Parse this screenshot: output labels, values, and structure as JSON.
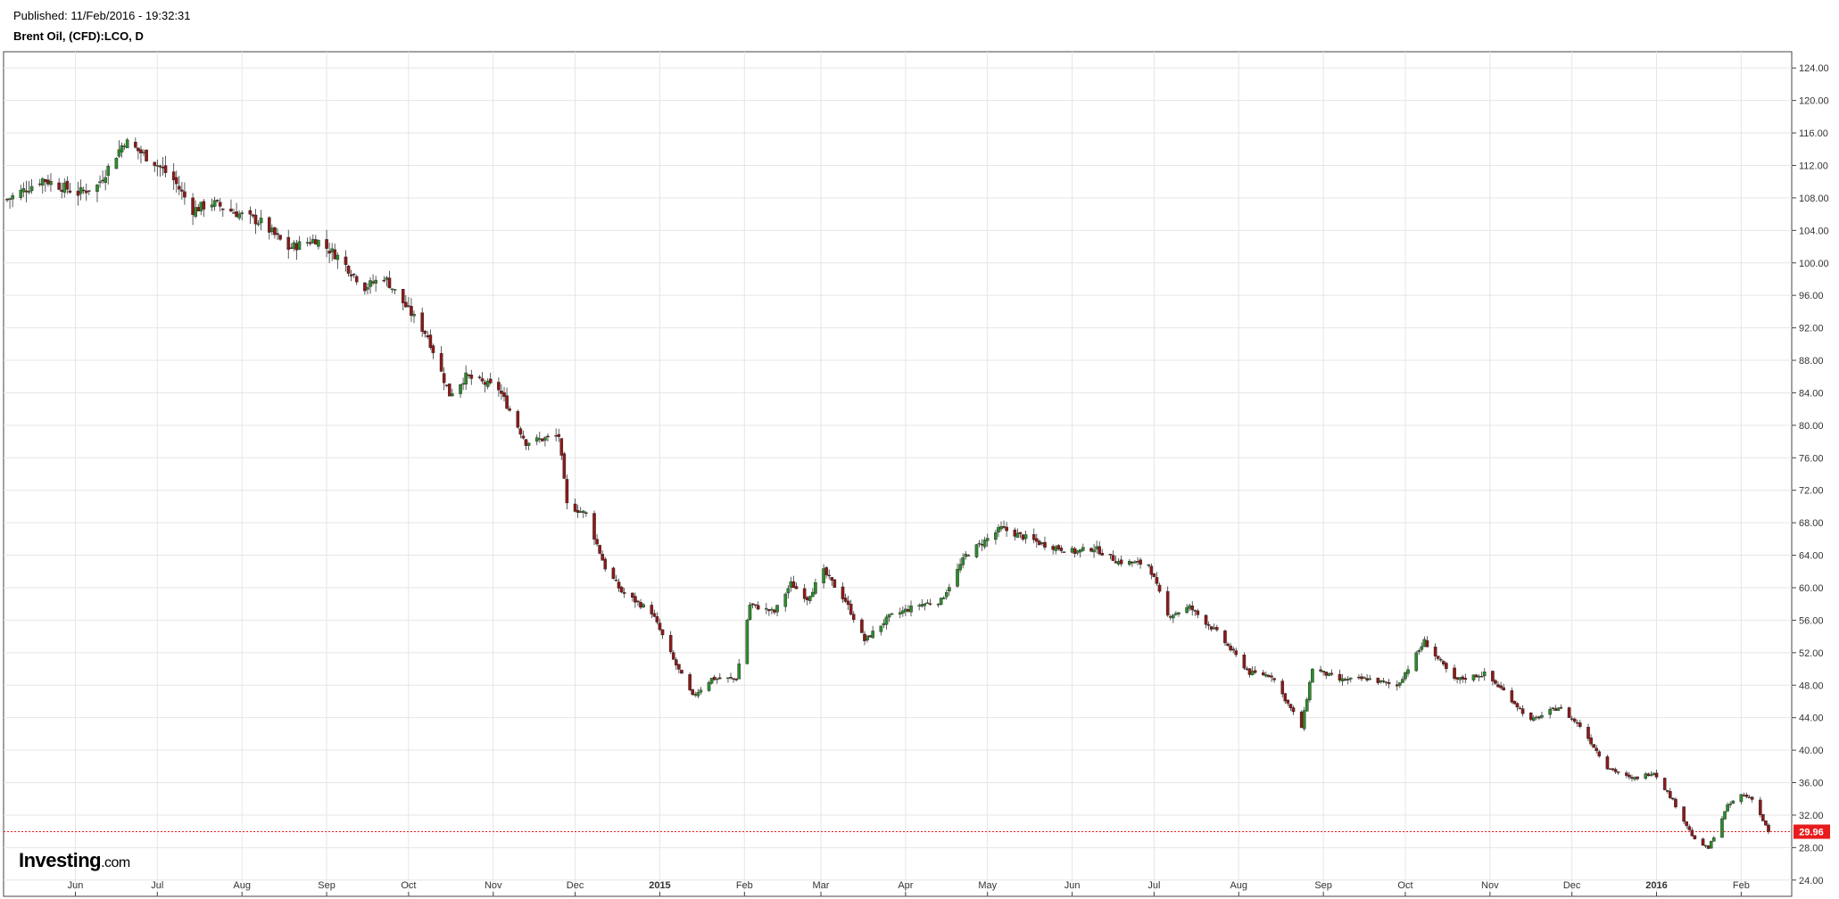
{
  "header": {
    "published": "Published: 11/Feb/2016 - 19:32:31",
    "title": "Brent Oil, (CFD):LCO, D"
  },
  "branding": {
    "logo_main": "Investing",
    "logo_suffix": ".com"
  },
  "colors": {
    "up": "#2e8b2e",
    "down": "#8b1a1a",
    "last_line": "#e81c1c",
    "grid": "#e6e6e6",
    "frame": "#444444"
  },
  "chart_data": {
    "type": "candlestick",
    "symbol": "Brent Oil, (CFD):LCO",
    "timeframe": "D",
    "ylim": [
      22,
      126
    ],
    "yticks": [
      "24.00",
      "28.00",
      "32.00",
      "36.00",
      "40.00",
      "44.00",
      "48.00",
      "52.00",
      "56.00",
      "60.00",
      "64.00",
      "68.00",
      "72.00",
      "76.00",
      "80.00",
      "84.00",
      "88.00",
      "92.00",
      "96.00",
      "100.00",
      "104.00",
      "108.00",
      "112.00",
      "116.00",
      "120.00",
      "124.00"
    ],
    "xlim": [
      "2014-05-07",
      "2016-02-11"
    ],
    "xticks": [
      {
        "label": "Jun",
        "date": "2014-06-01",
        "bold": false
      },
      {
        "label": "Jul",
        "date": "2014-07-01",
        "bold": false
      },
      {
        "label": "Aug",
        "date": "2014-08-01",
        "bold": false
      },
      {
        "label": "Sep",
        "date": "2014-09-01",
        "bold": false
      },
      {
        "label": "Oct",
        "date": "2014-10-01",
        "bold": false
      },
      {
        "label": "Nov",
        "date": "2014-11-01",
        "bold": false
      },
      {
        "label": "Dec",
        "date": "2014-12-01",
        "bold": false
      },
      {
        "label": "2015",
        "date": "2015-01-01",
        "bold": true
      },
      {
        "label": "Feb",
        "date": "2015-02-01",
        "bold": false
      },
      {
        "label": "Mar",
        "date": "2015-03-01",
        "bold": false
      },
      {
        "label": "Apr",
        "date": "2015-04-01",
        "bold": false
      },
      {
        "label": "May",
        "date": "2015-05-01",
        "bold": false
      },
      {
        "label": "Jun",
        "date": "2015-06-01",
        "bold": false
      },
      {
        "label": "Jul",
        "date": "2015-07-01",
        "bold": false
      },
      {
        "label": "Aug",
        "date": "2015-08-01",
        "bold": false
      },
      {
        "label": "Sep",
        "date": "2015-09-01",
        "bold": false
      },
      {
        "label": "Oct",
        "date": "2015-10-01",
        "bold": false
      },
      {
        "label": "Nov",
        "date": "2015-11-01",
        "bold": false
      },
      {
        "label": "Dec",
        "date": "2015-12-01",
        "bold": false
      },
      {
        "label": "2016",
        "date": "2016-01-01",
        "bold": true
      },
      {
        "label": "Feb",
        "date": "2016-02-01",
        "bold": false
      }
    ],
    "last_price": 29.96,
    "last_label": "29.96",
    "grid": true,
    "close_path": [
      [
        "2014-05-07",
        107.8
      ],
      [
        "2014-05-20",
        110.3
      ],
      [
        "2014-06-02",
        108.6
      ],
      [
        "2014-06-09",
        109.5
      ],
      [
        "2014-06-19",
        115.0
      ],
      [
        "2014-06-30",
        112.4
      ],
      [
        "2014-07-07",
        110.2
      ],
      [
        "2014-07-14",
        106.5
      ],
      [
        "2014-07-21",
        107.4
      ],
      [
        "2014-07-31",
        106.0
      ],
      [
        "2014-08-08",
        105.0
      ],
      [
        "2014-08-18",
        101.8
      ],
      [
        "2014-08-28",
        102.9
      ],
      [
        "2014-09-05",
        100.8
      ],
      [
        "2014-09-15",
        97.0
      ],
      [
        "2014-09-22",
        98.3
      ],
      [
        "2014-10-01",
        94.2
      ],
      [
        "2014-10-08",
        91.0
      ],
      [
        "2014-10-16",
        83.8
      ],
      [
        "2014-10-22",
        86.0
      ],
      [
        "2014-11-03",
        84.5
      ],
      [
        "2014-11-13",
        77.9
      ],
      [
        "2014-11-25",
        78.7
      ],
      [
        "2014-11-28",
        70.2
      ],
      [
        "2014-12-05",
        69.1
      ],
      [
        "2014-12-12",
        62.5
      ],
      [
        "2014-12-18",
        59.5
      ],
      [
        "2014-12-29",
        57.0
      ],
      [
        "2015-01-06",
        51.1
      ],
      [
        "2015-01-13",
        46.6
      ],
      [
        "2015-01-20",
        48.8
      ],
      [
        "2015-01-29",
        48.8
      ],
      [
        "2015-02-03",
        57.9
      ],
      [
        "2015-02-12",
        57.0
      ],
      [
        "2015-02-18",
        60.5
      ],
      [
        "2015-02-24",
        58.7
      ],
      [
        "2015-03-02",
        62.0
      ],
      [
        "2015-03-10",
        58.4
      ],
      [
        "2015-03-17",
        53.5
      ],
      [
        "2015-03-26",
        56.4
      ],
      [
        "2015-04-06",
        57.9
      ],
      [
        "2015-04-14",
        58.4
      ],
      [
        "2015-04-23",
        64.0
      ],
      [
        "2015-05-06",
        67.3
      ],
      [
        "2015-05-13",
        66.4
      ],
      [
        "2015-05-21",
        65.4
      ],
      [
        "2015-06-02",
        64.4
      ],
      [
        "2015-06-09",
        64.9
      ],
      [
        "2015-06-18",
        63.2
      ],
      [
        "2015-06-29",
        62.9
      ],
      [
        "2015-07-06",
        56.5
      ],
      [
        "2015-07-14",
        57.6
      ],
      [
        "2015-07-24",
        54.5
      ],
      [
        "2015-08-05",
        49.5
      ],
      [
        "2015-08-13",
        49.2
      ],
      [
        "2015-08-24",
        42.8
      ],
      [
        "2015-08-28",
        50.1
      ],
      [
        "2015-09-07",
        48.6
      ],
      [
        "2015-09-17",
        48.8
      ],
      [
        "2015-09-28",
        47.9
      ],
      [
        "2015-10-08",
        53.4
      ],
      [
        "2015-10-19",
        48.6
      ],
      [
        "2015-10-30",
        49.4
      ],
      [
        "2015-11-06",
        47.3
      ],
      [
        "2015-11-16",
        43.6
      ],
      [
        "2015-11-26",
        45.3
      ],
      [
        "2015-12-04",
        43.0
      ],
      [
        "2015-12-14",
        37.9
      ],
      [
        "2015-12-23",
        36.4
      ],
      [
        "2015-12-31",
        37.3
      ],
      [
        "2016-01-07",
        33.8
      ],
      [
        "2016-01-15",
        28.9
      ],
      [
        "2016-01-20",
        27.9
      ],
      [
        "2016-01-27",
        33.1
      ],
      [
        "2016-02-01",
        34.5
      ],
      [
        "2016-02-05",
        34.1
      ],
      [
        "2016-02-11",
        29.96
      ]
    ]
  }
}
